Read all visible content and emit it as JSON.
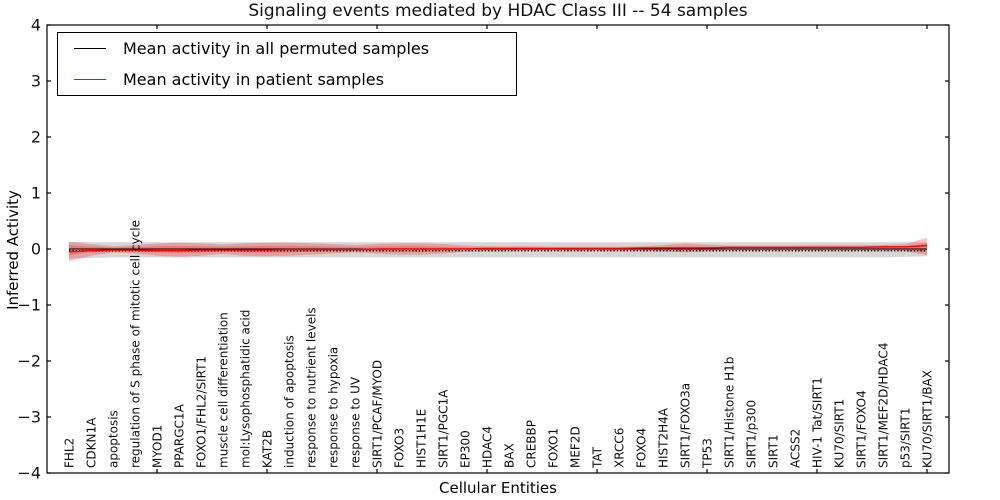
{
  "chart_data": {
    "type": "line",
    "title": "Signaling events mediated by HDAC Class III -- 54 samples",
    "xlabel": "Cellular Entities",
    "ylabel": "Inferred Activity",
    "ylim": [
      -4,
      4
    ],
    "grid": false,
    "legend_position": "upper left",
    "ytick_values": [
      4,
      3,
      2,
      1,
      0,
      -1,
      -2,
      -3,
      -4
    ],
    "ytick_labels": [
      "4",
      "3",
      "2",
      "1",
      "0",
      "−1",
      "−2",
      "−3",
      "−4"
    ],
    "xtick_positions": [
      5,
      10,
      15,
      20,
      25,
      30,
      35,
      40
    ],
    "categories": [
      "FHL2",
      "CDKN1A",
      "apoptosis",
      "regulation of S phase of mitotic cell cycle",
      "MYOD1",
      "PPARGC1A",
      "FOXO1/FHL2/SIRT1",
      "muscle cell differentiation",
      "mol:Lysophosphatidic acid",
      "KAT2B",
      "induction of apoptosis",
      "response to nutrient levels",
      "response to hypoxia",
      "response to UV",
      "SIRT1/PCAF/MYOD",
      "FOXO3",
      "HIST1H1E",
      "SIRT1/PGC1A",
      "EP300",
      "HDAC4",
      "BAX",
      "CREBBP",
      "FOXO1",
      "MEF2D",
      "TAT",
      "XRCC6",
      "FOXO4",
      "HIST2H4A",
      "SIRT1/FOXO3a",
      "TP53",
      "SIRT1/Histone H1b",
      "SIRT1/p300",
      "SIRT1",
      "ACSS2",
      "HIV-1 Tat/SIRT1",
      "KU70/SIRT1",
      "SIRT1/FOXO4",
      "SIRT1/MEF2D/HDAC4",
      "p53/SIRT1",
      "KU70/SIRT1/BAX"
    ],
    "legend": [
      {
        "label": "Mean activity in all permuted samples",
        "color": "#000000"
      },
      {
        "label": "Mean activity in patient samples",
        "color": "#ff0000"
      }
    ],
    "series": [
      {
        "name": "Mean activity in all permuted samples",
        "color": "#000000",
        "values": [
          0,
          0,
          0,
          0,
          0,
          0,
          0,
          0,
          0,
          0,
          0,
          0,
          0,
          0,
          0,
          0,
          0,
          0,
          0,
          0,
          0,
          0,
          0,
          0,
          0,
          0,
          0,
          0,
          0,
          0,
          0,
          0,
          0,
          0,
          0,
          0,
          0,
          0,
          0,
          0
        ]
      },
      {
        "name": "Mean activity in patient samples",
        "color": "#ff0000",
        "values": [
          -0.05,
          -0.03,
          -0.02,
          -0.02,
          -0.03,
          -0.03,
          -0.02,
          -0.02,
          -0.02,
          -0.02,
          -0.01,
          -0.01,
          -0.01,
          -0.01,
          0,
          0,
          0,
          0,
          0,
          0.01,
          0.01,
          0.01,
          0.01,
          0.01,
          0.01,
          0.01,
          0.02,
          0.02,
          0.02,
          0.02,
          0.03,
          0.03,
          0.03,
          0.03,
          0.03,
          0.03,
          0.03,
          0.04,
          0.04,
          0.06
        ]
      }
    ],
    "bands": [
      {
        "name": "permuted-samples-range",
        "color": "#999999",
        "opacity": 0.4,
        "upper": [
          0.13,
          0.12,
          0.12,
          0.12,
          0.12,
          0.12,
          0.12,
          0.12,
          0.12,
          0.12,
          0.12,
          0.12,
          0.12,
          0.12,
          0.12,
          0.12,
          0.12,
          0.12,
          0.12,
          0.12,
          0.12,
          0.12,
          0.12,
          0.12,
          0.12,
          0.12,
          0.12,
          0.12,
          0.12,
          0.12,
          0.12,
          0.12,
          0.12,
          0.12,
          0.12,
          0.12,
          0.12,
          0.12,
          0.12,
          0.12
        ],
        "lower": [
          -0.17,
          -0.16,
          -0.15,
          -0.15,
          -0.15,
          -0.15,
          -0.15,
          -0.15,
          -0.15,
          -0.15,
          -0.15,
          -0.15,
          -0.15,
          -0.15,
          -0.15,
          -0.15,
          -0.15,
          -0.15,
          -0.15,
          -0.15,
          -0.15,
          -0.15,
          -0.15,
          -0.15,
          -0.15,
          -0.15,
          -0.15,
          -0.15,
          -0.15,
          -0.15,
          -0.15,
          -0.15,
          -0.15,
          -0.15,
          -0.15,
          -0.15,
          -0.15,
          -0.15,
          -0.14,
          -0.13
        ]
      },
      {
        "name": "patient-samples-range",
        "color": "#ff0000",
        "opacity": 0.24,
        "upper": [
          0.13,
          0.09,
          0.05,
          0.07,
          0.1,
          0.11,
          0.1,
          0.08,
          0.1,
          0.11,
          0.11,
          0.1,
          0.09,
          0.07,
          0.09,
          0.1,
          0.1,
          0.09,
          0.06,
          0.05,
          0.05,
          0.05,
          0.04,
          0.04,
          0.04,
          0.04,
          0.05,
          0.07,
          0.1,
          0.08,
          0.06,
          0.06,
          0.06,
          0.06,
          0.07,
          0.07,
          0.07,
          0.07,
          0.09,
          0.2
        ],
        "lower": [
          -0.22,
          -0.12,
          -0.06,
          -0.08,
          -0.12,
          -0.14,
          -0.12,
          -0.09,
          -0.12,
          -0.13,
          -0.12,
          -0.1,
          -0.08,
          -0.06,
          -0.08,
          -0.1,
          -0.1,
          -0.08,
          -0.05,
          -0.04,
          -0.04,
          -0.03,
          -0.03,
          -0.03,
          -0.03,
          -0.03,
          -0.03,
          -0.04,
          -0.06,
          -0.04,
          -0.03,
          -0.03,
          -0.03,
          -0.03,
          -0.03,
          -0.03,
          -0.03,
          -0.03,
          -0.04,
          -0.11
        ]
      }
    ]
  }
}
